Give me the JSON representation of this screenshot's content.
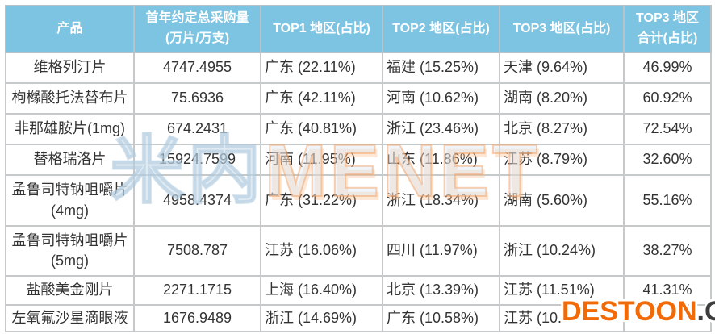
{
  "chart_data": {
    "type": "table",
    "columns": [
      "产品",
      "首年约定总采购量\n(万片/万支)",
      "TOP1 地区(占比)",
      "TOP2 地区(占比)",
      "TOP3 地区(占比)",
      "TOP3 地区\n合计(占比)"
    ],
    "rows": [
      {
        "product": "维格列汀片",
        "volume": "4747.4955",
        "top1": "广东 (22.11%)",
        "top2": "福建 (15.25%)",
        "top3": "天津 (9.64%)",
        "top3_total": "46.99%"
      },
      {
        "product": "枸橼酸托法替布片",
        "volume": "75.6936",
        "top1": "广东 (42.11%)",
        "top2": "河南 (10.62%)",
        "top3": "湖南 (8.20%)",
        "top3_total": "60.92%"
      },
      {
        "product": "非那雄胺片(1mg)",
        "volume": "674.2431",
        "top1": "广东 (40.81%)",
        "top2": "浙江 (23.46%)",
        "top3": "北京 (8.27%)",
        "top3_total": "72.54%"
      },
      {
        "product": "替格瑞洛片",
        "volume": "15924.7599",
        "top1": "河南 (11.95%)",
        "top2": "山东 (11.86%)",
        "top3": "江苏 (8.79%)",
        "top3_total": "32.60%"
      },
      {
        "product": "孟鲁司特钠咀嚼片\n(4mg)",
        "volume": "4958.4374",
        "top1": "广东 (31.22%)",
        "top2": "浙江 (18.34%)",
        "top3": "湖南 (5.60%)",
        "top3_total": "55.16%"
      },
      {
        "product": "孟鲁司特钠咀嚼片\n(5mg)",
        "volume": "7508.787",
        "top1": "江苏 (16.06%)",
        "top2": "四川 (11.97%)",
        "top3": "浙江 (10.24%)",
        "top3_total": "38.27%"
      },
      {
        "product": "盐酸美金刚片",
        "volume": "2271.1715",
        "top1": "上海 (16.40%)",
        "top2": "北京 (13.39%)",
        "top3": "江苏 (11.51%)",
        "top3_total": "41.31%"
      },
      {
        "product": "左氧氟沙星滴眼液",
        "volume": "1676.9489",
        "top1": "浙江 (14.69%)",
        "top2": "广东 (10.58%)",
        "top3": "江苏 (10.0",
        "top3_total": ""
      }
    ]
  },
  "watermarks": {
    "menet_cn": "米内",
    "menet_en": "MENET",
    "destoon_name": "DESTOON",
    "destoon_tld": ".COM"
  },
  "colors": {
    "header_bg": "#7CC4E2",
    "header_text": "#FFFFFF",
    "body_text": "#333333",
    "border": "#C6C9CA",
    "watermark_orange": "#F26A07",
    "watermark_dark": "#3D3D3D"
  }
}
